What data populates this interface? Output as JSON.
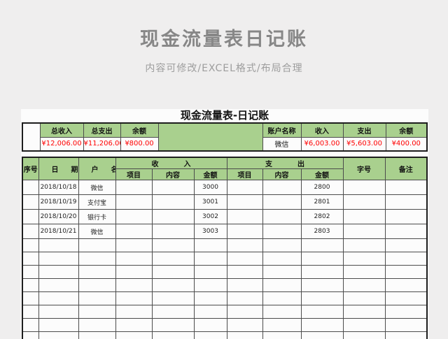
{
  "page": {
    "title": "现金流量表日记账",
    "subtitle": "内容可修改/EXCEL格式/布局合理"
  },
  "sheet": {
    "title": "现金流量表-日记账",
    "summary": {
      "left": {
        "headers": [
          "总收入",
          "总支出",
          "余额"
        ],
        "values": [
          "¥12,006.00",
          "¥11,206.00",
          "¥800.00"
        ]
      },
      "right": {
        "headers": [
          "账户名称",
          "收入",
          "支出",
          "余额"
        ],
        "values": [
          "微信",
          "¥6,003.00",
          "¥5,603.00",
          "¥400.00"
        ]
      }
    },
    "table": {
      "headers": {
        "no": "序号",
        "date": "日期",
        "account": "户名",
        "income_group": "收入",
        "expense_group": "支出",
        "item": "项目",
        "content": "内容",
        "amount": "金额",
        "doc_no": "字号",
        "remark": "备注"
      },
      "rows": [
        {
          "date": "2018/10/18",
          "account": "微信",
          "income_amount": "3000",
          "expense_amount": "2800"
        },
        {
          "date": "2018/10/19",
          "account": "支付宝",
          "income_amount": "3001",
          "expense_amount": "2801"
        },
        {
          "date": "2018/10/20",
          "account": "银行卡",
          "income_amount": "3002",
          "expense_amount": "2802"
        },
        {
          "date": "2018/10/21",
          "account": "微信",
          "income_amount": "3003",
          "expense_amount": "2803"
        }
      ],
      "empty_row_count": 8
    },
    "colors": {
      "header_green": "#a9d08e",
      "amount_red": "#ff0000"
    }
  }
}
